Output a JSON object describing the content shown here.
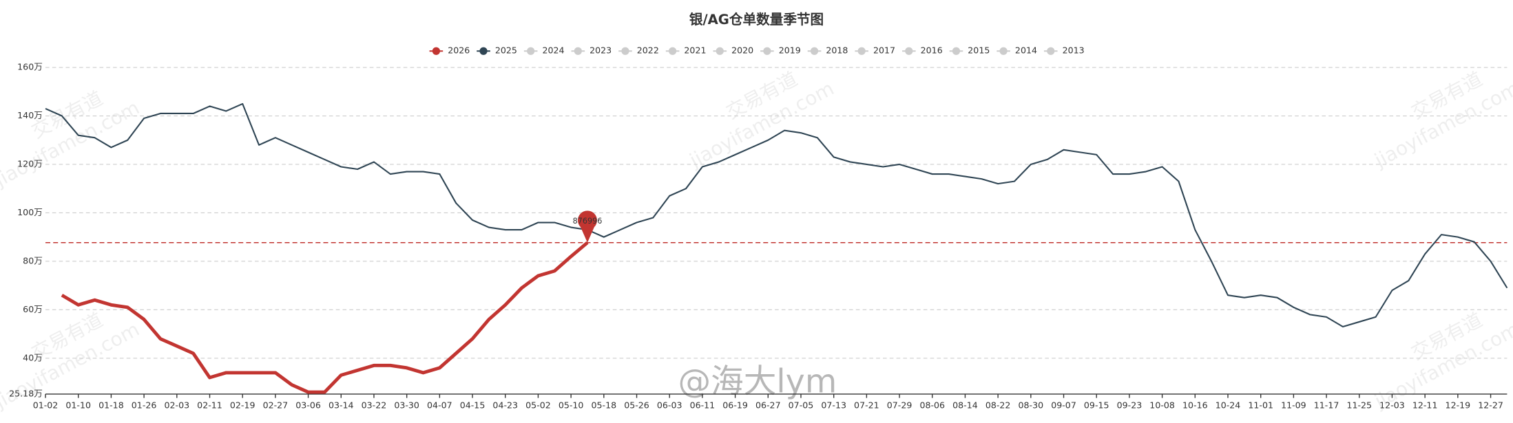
{
  "chart_data": {
    "type": "line",
    "title": "银/AG仓单数量季节图",
    "categories": [
      "01-02",
      null,
      "01-10",
      null,
      "01-18",
      null,
      "01-26",
      null,
      "02-03",
      null,
      "02-11",
      null,
      "02-19",
      null,
      "02-27",
      null,
      "03-06",
      null,
      "03-14",
      null,
      "03-22",
      null,
      "03-30",
      null,
      "04-07",
      null,
      "04-15",
      null,
      "04-23",
      null,
      "05-02",
      null,
      "05-10",
      null,
      "05-18",
      null,
      "05-26",
      null,
      "06-03",
      null,
      "06-11",
      null,
      "06-19",
      null,
      "06-27",
      null,
      "07-05",
      null,
      "07-13",
      null,
      "07-21",
      null,
      "07-29",
      null,
      "08-06",
      null,
      "08-14",
      null,
      "08-22",
      null,
      "08-30",
      null,
      "09-07",
      null,
      "09-15",
      null,
      "09-23",
      null,
      "10-08",
      null,
      "10-16",
      null,
      "10-24",
      null,
      "11-01",
      null,
      "11-09",
      null,
      "11-17",
      null,
      "11-25",
      null,
      "12-03",
      null,
      "12-11",
      null,
      "12-19",
      null,
      "12-27",
      null
    ],
    "series": [
      {
        "name": "2026",
        "color": "#c23531",
        "values": [
          null,
          66,
          62,
          64,
          62,
          61,
          56,
          48,
          45,
          42,
          32,
          34,
          34,
          34,
          34,
          29,
          26,
          26,
          33,
          35,
          37,
          37,
          36,
          34,
          36,
          42,
          48,
          56,
          62,
          69,
          74,
          76,
          82,
          87.7,
          null,
          null,
          null,
          null,
          null,
          null,
          null,
          null,
          null,
          null,
          null,
          null,
          null,
          null,
          null,
          null,
          null,
          null,
          null,
          null,
          null,
          null,
          null,
          null,
          null,
          null,
          null,
          null,
          null,
          null,
          null,
          null,
          null,
          null,
          null,
          null,
          null,
          null,
          null,
          null,
          null,
          null,
          null,
          null,
          null,
          null,
          null,
          null,
          null,
          null,
          null,
          null,
          null,
          null,
          null,
          null
        ]
      },
      {
        "name": "2025",
        "color": "#2f4554",
        "values": [
          143,
          140,
          132,
          131,
          127,
          130,
          139,
          141,
          141,
          141,
          144,
          142,
          145,
          128,
          131,
          128,
          125,
          122,
          119,
          118,
          121,
          116,
          117,
          117,
          116,
          104,
          97,
          94,
          93,
          93,
          96,
          96,
          94,
          93,
          90,
          93,
          96,
          98,
          107,
          110,
          119,
          121,
          124,
          127,
          130,
          134,
          133,
          131,
          123,
          121,
          120,
          119,
          120,
          118,
          116,
          116,
          115,
          114,
          112,
          113,
          120,
          122,
          126,
          125,
          124,
          116,
          116,
          117,
          119,
          113,
          93,
          80,
          66,
          65,
          66,
          65,
          61,
          58,
          57,
          53,
          55,
          57,
          68,
          72,
          83,
          91,
          90,
          88,
          80,
          69
        ]
      }
    ],
    "legend_inactive": [
      "2024",
      "2023",
      "2022",
      "2021",
      "2020",
      "2019",
      "2018",
      "2017",
      "2016",
      "2015",
      "2014",
      "2013"
    ],
    "ylim": [
      25.18,
      160
    ],
    "yticks": [
      {
        "value": 25.18,
        "label": "25.18万"
      },
      {
        "value": 40,
        "label": "40万"
      },
      {
        "value": 60,
        "label": "60万"
      },
      {
        "value": 80,
        "label": "80万"
      },
      {
        "value": 100,
        "label": "100万"
      },
      {
        "value": 120,
        "label": "120万"
      },
      {
        "value": 140,
        "label": "140万"
      },
      {
        "value": 160,
        "label": "160万"
      }
    ],
    "grid": true,
    "mark_point": {
      "value": 87.6996,
      "label": "876996"
    },
    "watermarks": [
      "交易有道",
      "jiaoyifamen.com",
      "@海大lym"
    ]
  }
}
